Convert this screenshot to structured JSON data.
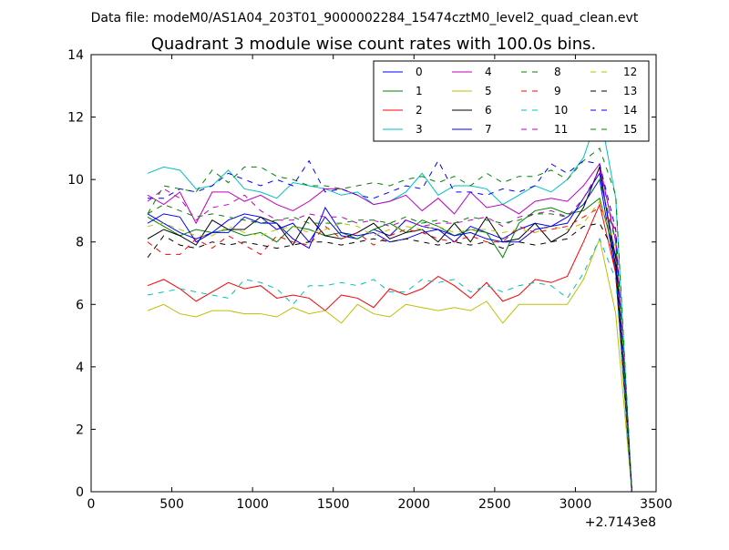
{
  "figure": {
    "suptitle": "Data file: modeM0/AS1A04_203T01_9000002284_15474cztM0_level2_quad_clean.evt",
    "offset_label": "+2.7143e8"
  },
  "chart_data": {
    "type": "line",
    "title": "Quadrant 3 module wise count rates with 100.0s bins.",
    "xlabel": "",
    "ylabel": "",
    "xlim": [
      0,
      3500
    ],
    "ylim": [
      0,
      14
    ],
    "x_offset": 271430000,
    "x_offset_label": "+2.7143e8",
    "xticks": [
      0,
      500,
      1000,
      1500,
      2000,
      2500,
      3000,
      3500
    ],
    "yticks": [
      0,
      2,
      4,
      6,
      8,
      10,
      12,
      14
    ],
    "grid": false,
    "legend": {
      "position": "top-right",
      "columns": 4
    },
    "x": [
      350,
      450,
      550,
      650,
      750,
      850,
      950,
      1050,
      1150,
      1250,
      1350,
      1450,
      1550,
      1650,
      1750,
      1850,
      1950,
      2050,
      2150,
      2250,
      2350,
      2450,
      2550,
      2650,
      2750,
      2850,
      2950,
      3050,
      3150,
      3250,
      3350
    ],
    "series": [
      {
        "name": "0",
        "color": "#0000ff",
        "dash": "solid",
        "values": [
          8.9,
          8.6,
          8.3,
          8.1,
          8.3,
          8.7,
          8.9,
          8.8,
          8.4,
          8.6,
          8.0,
          8.8,
          8.2,
          8.1,
          8.4,
          8.2,
          8.7,
          8.5,
          8.4,
          8.0,
          8.5,
          8.3,
          8.1,
          8.4,
          8.6,
          8.5,
          8.8,
          9.2,
          10.0,
          7.0,
          0.0
        ]
      },
      {
        "name": "1",
        "color": "#008000",
        "dash": "solid",
        "values": [
          8.8,
          8.5,
          8.2,
          8.4,
          8.3,
          8.4,
          8.2,
          8.3,
          8.0,
          8.5,
          8.4,
          8.2,
          8.3,
          8.1,
          8.4,
          8.6,
          8.3,
          8.7,
          8.5,
          8.2,
          8.4,
          8.3,
          7.5,
          8.6,
          9.0,
          9.1,
          8.9,
          9.0,
          9.4,
          7.5,
          0.0
        ]
      },
      {
        "name": "2",
        "color": "#ff0000",
        "dash": "solid",
        "values": [
          6.6,
          6.8,
          6.5,
          6.1,
          6.4,
          6.7,
          6.5,
          6.6,
          6.2,
          6.3,
          6.2,
          5.8,
          6.3,
          6.2,
          5.9,
          6.5,
          6.3,
          6.5,
          6.9,
          6.6,
          6.2,
          6.7,
          6.1,
          6.3,
          6.8,
          6.7,
          6.9,
          8.0,
          9.2,
          7.0,
          0.0
        ]
      },
      {
        "name": "3",
        "color": "#00bfbf",
        "dash": "solid",
        "values": [
          10.2,
          10.4,
          10.3,
          9.7,
          9.8,
          10.3,
          9.7,
          9.6,
          9.4,
          9.9,
          9.8,
          9.7,
          9.5,
          9.6,
          9.2,
          9.3,
          9.6,
          10.2,
          9.5,
          9.8,
          9.8,
          9.7,
          9.2,
          9.5,
          9.8,
          9.6,
          10.0,
          10.7,
          12.2,
          9.4,
          0.0
        ]
      },
      {
        "name": "4",
        "color": "#bf00bf",
        "dash": "solid",
        "values": [
          9.5,
          9.2,
          9.6,
          8.6,
          9.6,
          9.6,
          9.3,
          9.5,
          9.2,
          9.0,
          9.3,
          9.7,
          9.7,
          9.5,
          9.2,
          9.3,
          9.5,
          9.0,
          9.4,
          8.9,
          9.6,
          9.1,
          9.2,
          8.9,
          9.3,
          9.4,
          9.3,
          9.8,
          10.5,
          8.0,
          0.0
        ]
      },
      {
        "name": "5",
        "color": "#bfbf00",
        "dash": "solid",
        "values": [
          5.8,
          6.0,
          5.7,
          5.6,
          5.8,
          5.8,
          5.7,
          5.7,
          5.6,
          5.9,
          5.7,
          5.8,
          5.4,
          6.0,
          5.7,
          5.6,
          6.0,
          5.9,
          5.8,
          5.9,
          5.8,
          6.1,
          5.4,
          6.0,
          6.0,
          6.0,
          6.0,
          6.8,
          8.1,
          5.7,
          0.0
        ]
      },
      {
        "name": "6",
        "color": "#000000",
        "dash": "solid",
        "values": [
          8.1,
          8.4,
          8.2,
          7.9,
          8.7,
          8.4,
          8.4,
          8.8,
          8.6,
          7.9,
          8.8,
          8.2,
          8.1,
          8.3,
          8.6,
          8.1,
          8.3,
          8.4,
          8.0,
          8.6,
          8.0,
          8.8,
          8.0,
          8.1,
          8.6,
          8.0,
          8.3,
          9.1,
          10.4,
          7.2,
          0.0
        ]
      },
      {
        "name": "7",
        "color": "#0000ff",
        "dash": "solid",
        "values": [
          8.6,
          8.9,
          8.8,
          8.0,
          8.3,
          8.3,
          8.8,
          8.6,
          8.6,
          8.1,
          7.8,
          9.1,
          8.3,
          8.2,
          8.3,
          8.0,
          8.1,
          8.3,
          8.4,
          8.2,
          8.3,
          8.1,
          8.0,
          8.0,
          8.4,
          8.5,
          8.6,
          9.4,
          10.2,
          7.5,
          0.0
        ]
      },
      {
        "name": "8",
        "color": "#008000",
        "dash": "dashed",
        "values": [
          8.9,
          9.8,
          9.7,
          9.6,
          10.3,
          9.9,
          10.4,
          10.4,
          10.1,
          10.0,
          9.8,
          9.8,
          9.7,
          9.8,
          9.9,
          9.8,
          10.0,
          10.1,
          9.9,
          10.1,
          9.8,
          10.2,
          9.9,
          10.1,
          10.1,
          10.3,
          10.0,
          10.6,
          11.0,
          9.5,
          0.0
        ]
      },
      {
        "name": "9",
        "color": "#ff0000",
        "dash": "dashed",
        "values": [
          8.0,
          7.6,
          7.6,
          8.1,
          7.8,
          8.2,
          7.9,
          7.6,
          8.2,
          8.0,
          7.9,
          8.5,
          8.1,
          8.3,
          7.9,
          8.2,
          8.4,
          8.3,
          8.1,
          8.0,
          8.2,
          8.0,
          8.0,
          8.5,
          8.3,
          8.4,
          8.5,
          8.8,
          9.1,
          8.4,
          0.0
        ]
      },
      {
        "name": "10",
        "color": "#00bfbf",
        "dash": "dashed",
        "values": [
          6.3,
          6.4,
          6.5,
          6.4,
          6.3,
          6.2,
          6.8,
          6.7,
          6.5,
          6.0,
          6.6,
          6.6,
          6.7,
          6.6,
          6.8,
          6.4,
          6.4,
          6.8,
          6.7,
          6.8,
          6.4,
          6.6,
          6.4,
          6.6,
          6.7,
          6.6,
          6.2,
          7.0,
          8.1,
          6.8,
          0.0
        ]
      },
      {
        "name": "11",
        "color": "#bf00bf",
        "dash": "dashed",
        "values": [
          9.3,
          9.7,
          9.4,
          8.7,
          9.1,
          9.2,
          9.5,
          9.0,
          8.7,
          8.7,
          8.9,
          8.8,
          8.8,
          8.6,
          8.7,
          8.5,
          8.7,
          8.5,
          8.6,
          8.6,
          8.7,
          8.8,
          8.5,
          8.8,
          8.9,
          9.0,
          8.8,
          9.4,
          10.3,
          8.2,
          0.0
        ]
      },
      {
        "name": "12",
        "color": "#bfbf00",
        "dash": "dashed",
        "values": [
          8.5,
          8.6,
          8.4,
          8.2,
          8.2,
          8.5,
          8.3,
          8.2,
          8.4,
          8.5,
          8.3,
          8.4,
          8.6,
          8.5,
          8.2,
          8.4,
          8.5,
          8.4,
          8.5,
          8.3,
          8.4,
          8.4,
          8.3,
          8.4,
          8.3,
          8.5,
          8.4,
          8.6,
          9.3,
          7.8,
          0.0
        ]
      },
      {
        "name": "13",
        "color": "#000000",
        "dash": "dashed",
        "values": [
          7.5,
          8.2,
          7.9,
          7.8,
          8.0,
          7.9,
          8.0,
          7.9,
          7.8,
          7.9,
          8.0,
          8.0,
          7.9,
          8.0,
          8.1,
          8.0,
          8.1,
          8.0,
          7.9,
          8.0,
          7.9,
          8.0,
          7.8,
          8.0,
          7.9,
          8.0,
          8.1,
          8.5,
          8.6,
          7.6,
          0.0
        ]
      },
      {
        "name": "14",
        "color": "#0000ff",
        "dash": "dashed",
        "values": [
          9.4,
          9.4,
          9.7,
          9.6,
          9.8,
          10.2,
          10.0,
          9.8,
          10.0,
          9.8,
          10.6,
          9.6,
          9.7,
          9.5,
          9.4,
          9.6,
          9.8,
          9.7,
          10.6,
          9.6,
          9.6,
          9.5,
          9.7,
          9.6,
          9.8,
          10.5,
          10.2,
          10.6,
          10.5,
          8.4,
          0.0
        ]
      },
      {
        "name": "15",
        "color": "#008000",
        "dash": "dashed",
        "values": [
          8.9,
          9.2,
          9.0,
          8.8,
          8.9,
          8.8,
          8.7,
          8.6,
          8.7,
          8.8,
          8.6,
          8.6,
          8.6,
          8.7,
          8.7,
          8.6,
          8.8,
          8.6,
          8.7,
          8.6,
          8.8,
          8.7,
          8.6,
          8.7,
          8.9,
          8.9,
          8.8,
          9.2,
          10.0,
          8.0,
          0.0
        ]
      }
    ]
  }
}
